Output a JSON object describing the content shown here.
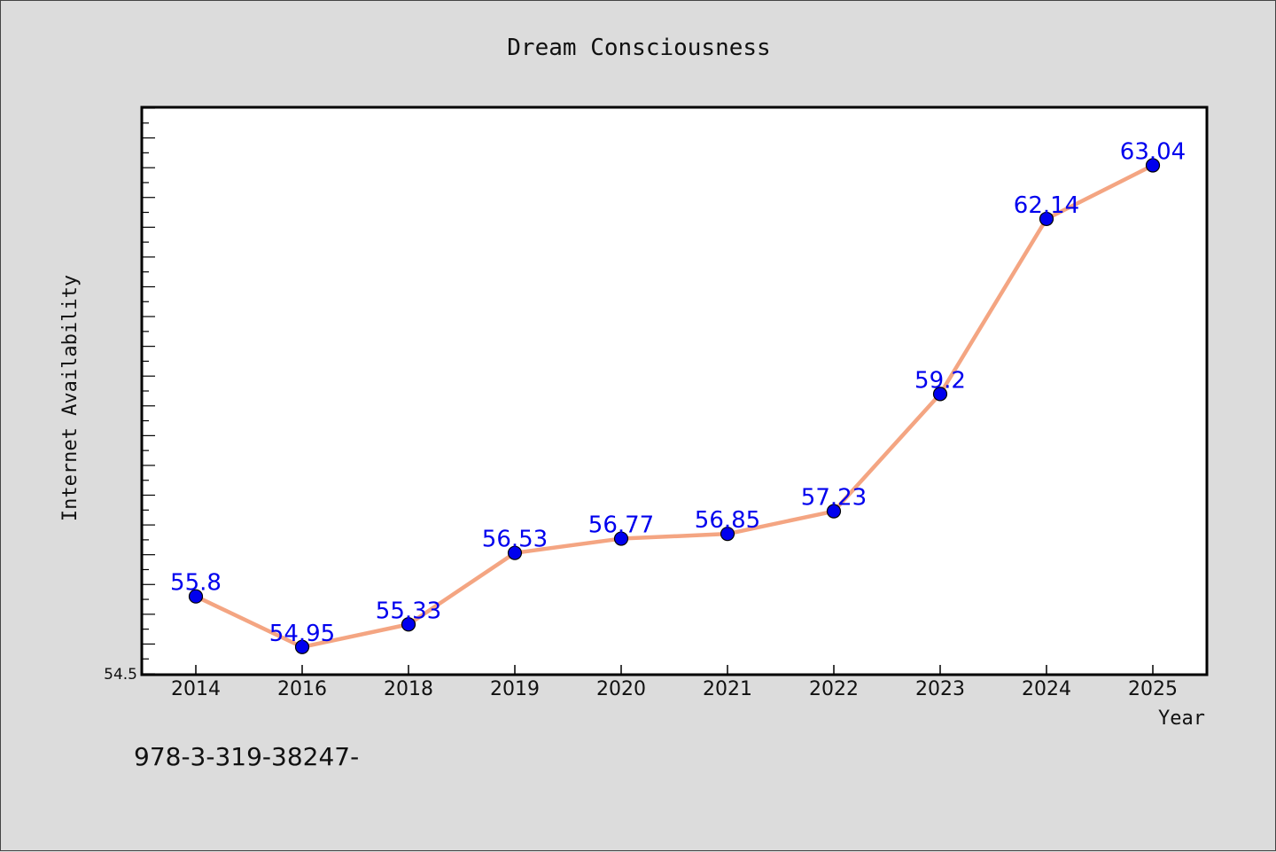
{
  "chart_data": {
    "type": "line",
    "title": "Dream Consciousness",
    "xlabel": "Year",
    "ylabel": "Internet Availability",
    "categories": [
      "2014",
      "2016",
      "2018",
      "2019",
      "2020",
      "2021",
      "2022",
      "2023",
      "2024",
      "2025"
    ],
    "series": [
      {
        "values": [
          55.8,
          54.95,
          55.33,
          56.53,
          56.77,
          56.85,
          57.23,
          59.2,
          62.14,
          63.04
        ],
        "data_labels": [
          "55.8",
          "54.95",
          "55.33",
          "56.53",
          "56.77",
          "56.85",
          "57.23",
          "59.2",
          "62.14",
          "63.04"
        ],
        "line_color": "#f4a582",
        "marker_color": "#0000ee",
        "label_color": "#0000ee"
      }
    ],
    "ylim": [
      54.5,
      64
    ],
    "y_tick_labels": [
      "54.5"
    ],
    "grid": false,
    "legend": false
  },
  "footnote": "978-3-319-38247-"
}
